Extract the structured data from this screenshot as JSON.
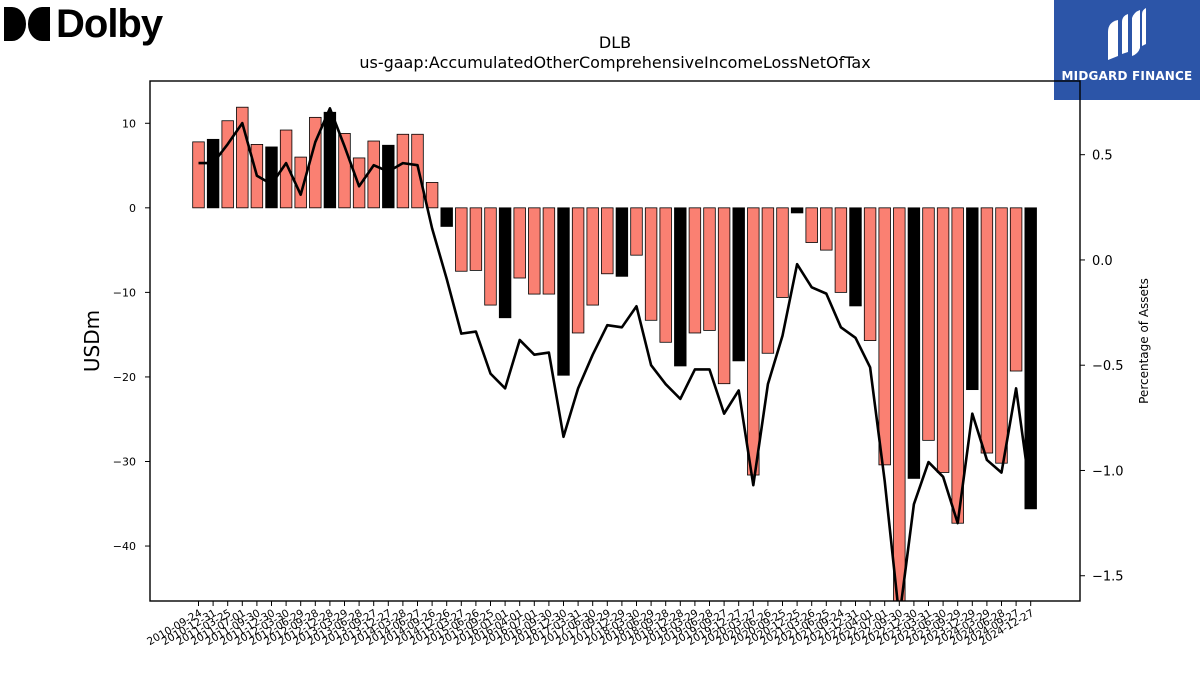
{
  "header": {
    "brand_left": "Dolby",
    "brand_right": "MIDGARD FINANCE"
  },
  "chart_data": {
    "type": "bar",
    "title": "DLB",
    "subtitle": "us-gaap:AccumulatedOtherComprehensiveIncomeLossNetOfTax",
    "ylabel": "USDm",
    "y2label": "Percentage of Assets",
    "ylim": [
      -46.5,
      15
    ],
    "y2lim": [
      -1.62,
      0.85
    ],
    "yticks": [
      -40,
      -30,
      -20,
      -10,
      0,
      10
    ],
    "y2ticks": [
      -1.5,
      -1.0,
      -0.5,
      0.0,
      0.5
    ],
    "ytick_labels": [
      "−40",
      "−30",
      "−20",
      "−10",
      "0",
      "10"
    ],
    "y2tick_labels": [
      "−1.5",
      "−1.0",
      "−0.5",
      "0.0",
      "0.5"
    ],
    "colors": {
      "quarter_bar": "#fa8072",
      "annual_bar": "#000000",
      "line": "#000000"
    },
    "categories": [
      "2010-09-24",
      "2010-12-31",
      "2011-03-25",
      "2011-07-01",
      "2011-09-30",
      "2011-12-30",
      "2012-03-30",
      "2012-06-29",
      "2012-09-28",
      "2012-12-28",
      "2013-03-29",
      "2013-06-28",
      "2013-09-27",
      "2013-12-27",
      "2014-03-28",
      "2014-06-27",
      "2014-09-26",
      "2014-12-26",
      "2015-03-27",
      "2015-06-26",
      "2015-09-25",
      "2016-01-01",
      "2016-04-01",
      "2016-07-01",
      "2016-09-30",
      "2016-12-30",
      "2017-03-31",
      "2017-06-30",
      "2017-09-29",
      "2017-12-29",
      "2018-03-30",
      "2018-06-29",
      "2018-09-28",
      "2018-12-28",
      "2019-03-29",
      "2019-06-28",
      "2019-09-27",
      "2019-12-27",
      "2020-03-27",
      "2020-06-26",
      "2020-09-25",
      "2020-12-25",
      "2021-03-26",
      "2021-06-25",
      "2021-09-24",
      "2021-12-31",
      "2022-04-01",
      "2022-07-01",
      "2022-09-30",
      "2022-12-30",
      "2023-03-31",
      "2023-06-30",
      "2023-09-29",
      "2023-12-29",
      "2024-03-29",
      "2024-06-28",
      "2024-09-27",
      "2024-12-27"
    ],
    "series": [
      {
        "values": [
          7.8,
          8.1,
          10.3,
          11.9,
          7.5,
          7.2,
          9.2,
          6.0,
          10.7,
          11.3,
          8.8,
          5.9,
          7.9,
          7.4,
          8.7,
          8.7,
          3.0,
          -2.2,
          -7.5,
          -7.4,
          -11.5,
          -13.0,
          -8.3,
          -10.2,
          -10.2,
          -19.8,
          -14.8,
          -11.5,
          -7.8,
          -8.1,
          -5.6,
          -13.3,
          -15.9,
          -18.7,
          -14.8,
          -14.5,
          -20.8,
          -18.1,
          -31.6,
          -17.2,
          -10.6,
          -0.6,
          -4.1,
          -5.0,
          -10.0,
          -11.6,
          -15.7,
          -30.4,
          -46.5,
          -32.0,
          -27.5,
          -31.3,
          -37.3,
          -21.5,
          -29.0,
          -30.2,
          -19.3,
          -35.6
        ]
      },
      {
        "axis": "right",
        "values": [
          0.46,
          0.46,
          0.55,
          0.65,
          0.4,
          0.36,
          0.46,
          0.31,
          0.56,
          0.72,
          0.54,
          0.35,
          0.45,
          0.42,
          0.46,
          0.45,
          0.15,
          -0.09,
          -0.35,
          -0.34,
          -0.54,
          -0.61,
          -0.38,
          -0.45,
          -0.44,
          -0.84,
          -0.61,
          -0.45,
          -0.31,
          -0.32,
          -0.22,
          -0.5,
          -0.59,
          -0.66,
          -0.52,
          -0.52,
          -0.73,
          -0.62,
          -1.07,
          -0.59,
          -0.36,
          -0.02,
          -0.13,
          -0.16,
          -0.32,
          -0.37,
          -0.51,
          -1.05,
          -1.7,
          -1.16,
          -0.96,
          -1.03,
          -1.25,
          -0.73,
          -0.95,
          -1.01,
          -0.61,
          -1.12
        ]
      }
    ],
    "annual_flags": [
      false,
      true,
      false,
      false,
      false,
      true,
      false,
      false,
      false,
      true,
      false,
      false,
      false,
      true,
      false,
      false,
      false,
      true,
      false,
      false,
      false,
      true,
      false,
      false,
      false,
      true,
      false,
      false,
      false,
      true,
      false,
      false,
      false,
      true,
      false,
      false,
      false,
      true,
      false,
      false,
      false,
      true,
      false,
      false,
      false,
      true,
      false,
      false,
      false,
      true,
      false,
      false,
      false,
      true,
      false,
      false,
      false,
      true
    ]
  }
}
